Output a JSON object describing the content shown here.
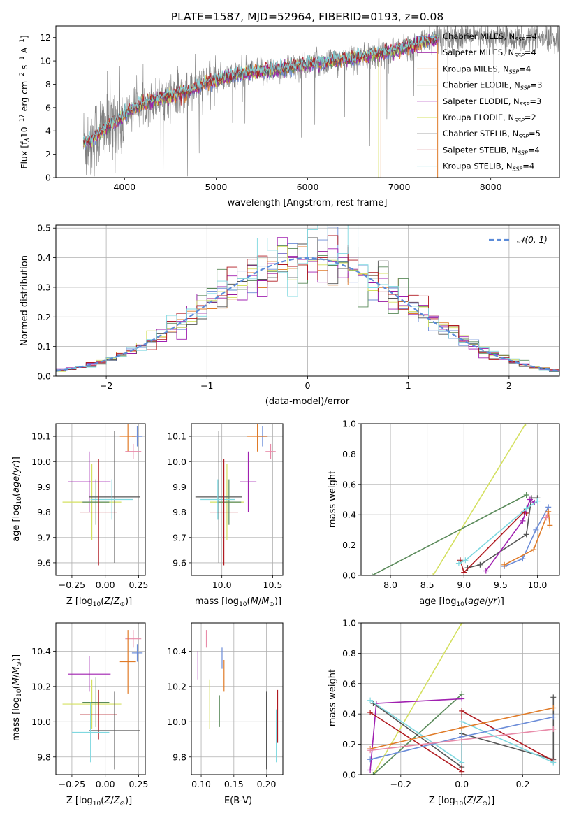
{
  "chart_data": [
    {
      "type": "line",
      "title": "PLATE=1587, MJD=52964, FIBERID=0193, z=0.08",
      "xlabel": "wavelength [Angstrom, rest frame]",
      "ylabel": "Flux [f_λ 10^-17 erg cm^-2 s^-1 A^-1]",
      "ylabel_parts": {
        "a": "Flux [f",
        "b": "λ",
        "c": "10",
        "d": "−17",
        "e": " erg cm",
        "f": "−2",
        "g": " s",
        "h": "−1",
        "i": " A",
        "j": "−1",
        "k": "]"
      },
      "xlim": [
        3250,
        8750
      ],
      "ylim": [
        0,
        13
      ],
      "xticks": [
        4000,
        5000,
        6000,
        7000,
        8000
      ],
      "yticks": [
        0,
        2,
        4,
        6,
        8,
        10,
        12
      ],
      "legend_position": "right",
      "series": [
        {
          "name": "Chabrier MILES",
          "sub": "SSP",
          "n": "4",
          "color": "#6b8cd8"
        },
        {
          "name": "Salpeter MILES",
          "sub": "SSP",
          "n": "4",
          "color": "#9a1aa0"
        },
        {
          "name": "Kroupa MILES",
          "sub": "SSP",
          "n": "4",
          "color": "#e07b28"
        },
        {
          "name": "Chabrier ELODIE",
          "sub": "SSP",
          "n": "3",
          "color": "#5a8a5a"
        },
        {
          "name": "Salpeter ELODIE",
          "sub": "SSP",
          "n": "3",
          "color": "#a020b0"
        },
        {
          "name": "Kroupa ELODIE",
          "sub": "SSP",
          "n": "2",
          "color": "#d4e060"
        },
        {
          "name": "Chabrier STELIB",
          "sub": "SSP",
          "n": "5",
          "color": "#555555"
        },
        {
          "name": "Salpeter STELIB",
          "sub": "SSP",
          "n": "4",
          "color": "#b01a20"
        },
        {
          "name": "Kroupa STELIB",
          "sub": "SSP",
          "n": "4",
          "color": "#7fd8e0"
        }
      ],
      "data_color": "#808080",
      "continuum": {
        "x": [
          3550,
          3650,
          3800,
          3950,
          4100,
          4300,
          4500,
          4700,
          4900,
          5100,
          5300,
          5500,
          5700,
          5900,
          6100,
          6300,
          6500,
          6700,
          6900,
          7100,
          7300,
          7450
        ],
        "y": [
          3.0,
          3.3,
          4.3,
          5.0,
          6.0,
          6.6,
          7.0,
          7.4,
          8.1,
          8.6,
          8.9,
          9.1,
          9.3,
          9.6,
          9.8,
          10.0,
          10.2,
          10.5,
          10.8,
          11.2,
          11.7,
          12.0
        ]
      }
    },
    {
      "type": "bar",
      "xlabel": "(data-model)/error",
      "ylabel": "Normed distribution",
      "xlim": [
        -2.5,
        2.5
      ],
      "ylim": [
        0,
        0.51
      ],
      "xticks": [
        -2,
        -1,
        0,
        1,
        2
      ],
      "yticks": [
        0.0,
        0.1,
        0.2,
        0.3,
        0.4,
        0.5
      ],
      "grid": true,
      "legend_position": "top-right",
      "gaussian_label": "𝒩(0, 1)",
      "gaussian_color": "#5b8bd8",
      "bin_width": 0.1
    },
    {
      "type": "scatter",
      "xlabel": "Z [log10(Z/Z⊙)]",
      "ylabel": "age  [log10(age/yr)]",
      "xlim": [
        -0.37,
        0.3
      ],
      "ylim": [
        9.55,
        10.15
      ],
      "xticks": [
        -0.25,
        0.0,
        0.25
      ],
      "yticks": [
        9.6,
        9.7,
        9.8,
        9.9,
        10.0,
        10.1
      ],
      "grid": true,
      "points": [
        {
          "x": 0.24,
          "y": 10.1,
          "ex": 0.04,
          "ey": 0.04,
          "color": "#6b8cd8"
        },
        {
          "x": 0.17,
          "y": 10.1,
          "ex": 0.06,
          "ey": 0.06,
          "color": "#e07b28"
        },
        {
          "x": 0.21,
          "y": 10.04,
          "ex": 0.06,
          "ey": 0.03,
          "color": "#e88aa8"
        },
        {
          "x": -0.12,
          "y": 9.92,
          "ex": 0.16,
          "ey": 0.12,
          "color": "#a020b0"
        },
        {
          "x": -0.1,
          "y": 9.84,
          "ex": 0.22,
          "ey": 0.15,
          "color": "#d4e060"
        },
        {
          "x": 0.07,
          "y": 9.86,
          "ex": 0.19,
          "ey": 0.26,
          "color": "#555555"
        },
        {
          "x": -0.07,
          "y": 9.84,
          "ex": 0.1,
          "ey": 0.09,
          "color": "#5a8a5a"
        },
        {
          "x": 0.05,
          "y": 9.85,
          "ex": 0.16,
          "ey": 0.08,
          "color": "#7fd8e0"
        },
        {
          "x": -0.05,
          "y": 9.8,
          "ex": 0.14,
          "ey": 0.21,
          "color": "#b01a20"
        }
      ]
    },
    {
      "type": "scatter",
      "xlabel": "mass [log10(M/M⊙)]",
      "ylabel": "",
      "xlim": [
        9.7,
        10.6
      ],
      "ylim": [
        9.55,
        10.15
      ],
      "xticks": [
        10.0,
        10.5
      ],
      "yticks": [
        9.6,
        9.7,
        9.8,
        9.9,
        10.0,
        10.1
      ],
      "grid": true,
      "points": [
        {
          "x": 10.4,
          "y": 10.1,
          "ex": 0.05,
          "ey": 0.04,
          "color": "#6b8cd8"
        },
        {
          "x": 10.35,
          "y": 10.1,
          "ex": 0.1,
          "ey": 0.06,
          "color": "#e07b28"
        },
        {
          "x": 10.48,
          "y": 10.04,
          "ex": 0.05,
          "ey": 0.03,
          "color": "#e88aa8"
        },
        {
          "x": 10.26,
          "y": 9.92,
          "ex": 0.08,
          "ey": 0.12,
          "color": "#a020b0"
        },
        {
          "x": 10.05,
          "y": 9.84,
          "ex": 0.17,
          "ey": 0.15,
          "color": "#d4e060"
        },
        {
          "x": 9.97,
          "y": 9.86,
          "ex": 0.23,
          "ey": 0.26,
          "color": "#555555"
        },
        {
          "x": 10.07,
          "y": 9.84,
          "ex": 0.12,
          "ey": 0.09,
          "color": "#5a8a5a"
        },
        {
          "x": 9.96,
          "y": 9.85,
          "ex": 0.17,
          "ey": 0.08,
          "color": "#7fd8e0"
        },
        {
          "x": 10.02,
          "y": 9.8,
          "ex": 0.14,
          "ey": 0.21,
          "color": "#b01a20"
        }
      ]
    },
    {
      "type": "line",
      "xlabel": "age  [log10(age/yr)]",
      "ylabel": "mass weight",
      "xlim": [
        7.6,
        10.3
      ],
      "ylim": [
        0,
        1
      ],
      "xticks": [
        8.0,
        8.5,
        9.0,
        9.5,
        10.0
      ],
      "yticks": [
        0.0,
        0.2,
        0.4,
        0.6,
        0.8,
        1.0
      ],
      "grid": true,
      "series": [
        {
          "color": "#d4e060",
          "x": [
            8.58,
            9.84
          ],
          "y": [
            0.0,
            1.0
          ]
        },
        {
          "color": "#5a8a5a",
          "x": [
            7.75,
            9.85
          ],
          "y": [
            0.0,
            0.53
          ]
        },
        {
          "color": "#555555",
          "x": [
            9.05,
            9.22,
            9.85,
            9.92,
            10.0
          ],
          "y": [
            0.05,
            0.07,
            0.27,
            0.51,
            0.51
          ]
        },
        {
          "color": "#b01a20",
          "x": [
            8.95,
            9.0,
            9.82,
            9.85
          ],
          "y": [
            0.1,
            0.02,
            0.42,
            0.41
          ]
        },
        {
          "color": "#a020b0",
          "x": [
            9.3,
            9.8,
            9.9,
            9.96
          ],
          "y": [
            0.03,
            0.36,
            0.5,
            0.48
          ]
        },
        {
          "color": "#7fd8e0",
          "x": [
            8.93,
            9.02,
            9.85,
            10.0
          ],
          "y": [
            0.08,
            0.1,
            0.44,
            0.49
          ]
        },
        {
          "color": "#6b8cd8",
          "x": [
            9.55,
            9.8,
            9.98,
            10.15
          ],
          "y": [
            0.06,
            0.11,
            0.3,
            0.45
          ]
        },
        {
          "color": "#e07b28",
          "x": [
            9.55,
            9.95,
            10.15,
            10.17
          ],
          "y": [
            0.07,
            0.17,
            0.42,
            0.33
          ]
        },
        {
          "color": "#e88aa8",
          "x": [
            10.12,
            10.14
          ],
          "y": [
            0.38,
            0.4
          ]
        }
      ]
    },
    {
      "type": "scatter",
      "xlabel": "Z [log10(Z/Z⊙)]",
      "ylabel": "mass [log10(M/M⊙)]",
      "xlim": [
        -0.37,
        0.3
      ],
      "ylim": [
        9.7,
        10.56
      ],
      "xticks": [
        -0.25,
        0.0,
        0.25
      ],
      "yticks": [
        9.8,
        10.0,
        10.2,
        10.4
      ],
      "grid": true,
      "points": [
        {
          "x": 0.21,
          "y": 10.47,
          "ex": 0.06,
          "ey": 0.05,
          "color": "#e88aa8"
        },
        {
          "x": 0.24,
          "y": 10.39,
          "ex": 0.04,
          "ey": 0.05,
          "color": "#6b8cd8"
        },
        {
          "x": 0.17,
          "y": 10.34,
          "ex": 0.06,
          "ey": 0.18,
          "color": "#e07b28"
        },
        {
          "x": -0.12,
          "y": 10.27,
          "ex": 0.16,
          "ey": 0.1,
          "color": "#a020b0"
        },
        {
          "x": -0.1,
          "y": 10.1,
          "ex": 0.22,
          "ey": 0.14,
          "color": "#d4e060"
        },
        {
          "x": -0.07,
          "y": 10.11,
          "ex": 0.1,
          "ey": 0.14,
          "color": "#5a8a5a"
        },
        {
          "x": -0.05,
          "y": 10.04,
          "ex": 0.14,
          "ey": 0.14,
          "color": "#b01a20"
        },
        {
          "x": 0.07,
          "y": 9.95,
          "ex": 0.19,
          "ey": 0.22,
          "color": "#555555"
        },
        {
          "x": -0.11,
          "y": 9.94,
          "ex": 0.14,
          "ey": 0.17,
          "color": "#7fd8e0"
        }
      ]
    },
    {
      "type": "scatter",
      "xlabel": "E(B-V)",
      "ylabel": "",
      "xlim": [
        0.085,
        0.225
      ],
      "ylim": [
        9.7,
        10.56
      ],
      "xticks": [
        0.1,
        0.15,
        0.2
      ],
      "yticks": [
        9.8,
        10.0,
        10.2,
        10.4
      ],
      "grid": true,
      "points": [
        {
          "x": 0.108,
          "y": 10.47,
          "ex": 0,
          "ey": 0.05,
          "color": "#e88aa8"
        },
        {
          "x": 0.132,
          "y": 10.36,
          "ex": 0,
          "ey": 0.06,
          "color": "#6b8cd8"
        },
        {
          "x": 0.135,
          "y": 10.26,
          "ex": 0,
          "ey": 0.09,
          "color": "#e07b28"
        },
        {
          "x": 0.095,
          "y": 10.32,
          "ex": 0,
          "ey": 0.08,
          "color": "#a020b0"
        },
        {
          "x": 0.113,
          "y": 10.1,
          "ex": 0,
          "ey": 0.14,
          "color": "#d4e060"
        },
        {
          "x": 0.128,
          "y": 10.06,
          "ex": 0,
          "ey": 0.09,
          "color": "#5a8a5a"
        },
        {
          "x": 0.2,
          "y": 9.95,
          "ex": 0,
          "ey": 0.22,
          "color": "#555555"
        },
        {
          "x": 0.217,
          "y": 10.03,
          "ex": 0,
          "ey": 0.15,
          "color": "#b01a20"
        },
        {
          "x": 0.215,
          "y": 9.92,
          "ex": 0,
          "ey": 0.15,
          "color": "#7fd8e0"
        }
      ]
    },
    {
      "type": "line",
      "xlabel": "Z [log10(Z/Z⊙)]",
      "ylabel": "mass weight",
      "xlim": [
        -0.33,
        0.32
      ],
      "ylim": [
        0,
        1
      ],
      "xticks": [
        -0.2,
        0.0,
        0.2
      ],
      "yticks": [
        0.0,
        0.2,
        0.4,
        0.6,
        0.8,
        1.0
      ],
      "grid": true,
      "series": [
        {
          "color": "#d4e060",
          "x": [
            -0.29,
            0.0
          ],
          "y": [
            0.0,
            1.0
          ]
        },
        {
          "color": "#5a8a5a",
          "x": [
            -0.29,
            0.0
          ],
          "y": [
            0.0,
            0.53
          ]
        },
        {
          "color": "#a020b0",
          "x": [
            -0.3,
            -0.28,
            0.0
          ],
          "y": [
            0.03,
            0.47,
            0.5
          ]
        },
        {
          "color": "#555555",
          "x": [
            -0.29,
            0.0,
            0.0,
            0.3,
            0.3
          ],
          "y": [
            0.47,
            0.05,
            0.27,
            0.1,
            0.51
          ]
        },
        {
          "color": "#b01a20",
          "x": [
            -0.3,
            0.0,
            0.0,
            0.3
          ],
          "y": [
            0.41,
            0.02,
            0.42,
            0.09
          ]
        },
        {
          "color": "#7fd8e0",
          "x": [
            -0.3,
            0.0,
            0.0,
            0.3
          ],
          "y": [
            0.49,
            0.08,
            0.35,
            0.08
          ]
        },
        {
          "color": "#6b8cd8",
          "x": [
            -0.3,
            0.0,
            0.3
          ],
          "y": [
            0.1,
            0.25,
            0.38
          ]
        },
        {
          "color": "#e07b28",
          "x": [
            -0.3,
            0.0,
            0.3
          ],
          "y": [
            0.17,
            0.31,
            0.44
          ]
        },
        {
          "color": "#e88aa8",
          "x": [
            -0.3,
            0.0,
            0.3
          ],
          "y": [
            0.16,
            0.23,
            0.3
          ]
        }
      ]
    }
  ]
}
